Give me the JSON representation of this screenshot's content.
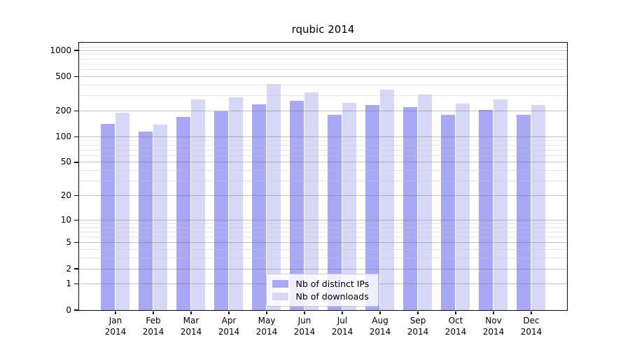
{
  "title": "rqubic 2014",
  "chart_data": {
    "type": "bar",
    "title": "rqubic 2014",
    "categories": [
      "Jan 2014",
      "Feb 2014",
      "Mar 2014",
      "Apr 2014",
      "May 2014",
      "Jun 2014",
      "Jul 2014",
      "Aug 2014",
      "Sep 2014",
      "Oct 2014",
      "Nov 2014",
      "Dec 2014"
    ],
    "series": [
      {
        "name": "Nb of distinct IPs",
        "color": "#a8a8f5",
        "values": [
          140,
          113,
          170,
          195,
          237,
          257,
          179,
          233,
          218,
          179,
          203,
          177
        ]
      },
      {
        "name": "Nb of downloads",
        "color": "#d7d7f8",
        "values": [
          187,
          138,
          269,
          284,
          407,
          324,
          245,
          348,
          304,
          239,
          268,
          230
        ]
      }
    ],
    "xlabel": "",
    "ylabel": "",
    "yscale": "log1p",
    "ylim": [
      0,
      1230
    ],
    "y_ticks": [
      0,
      1,
      2,
      5,
      10,
      20,
      50,
      100,
      200,
      500,
      1000
    ],
    "y_minor_ticks": [
      3,
      4,
      6,
      7,
      8,
      9,
      30,
      40,
      60,
      70,
      80,
      90,
      300,
      400,
      600,
      700,
      800,
      900,
      1100,
      1200
    ],
    "grid": "major-and-minor, drawn over bars",
    "legend_position": "lower center"
  },
  "colors": {
    "bar_ips": "#a8a8f5",
    "bar_downloads": "#d7d7f8",
    "major_grid": "rgba(110,110,110,0.42)",
    "minor_grid": "rgba(200,200,200,0.45)",
    "axis": "#0a0a0a",
    "background": "#ffffff",
    "legend_border": "#cccccc"
  }
}
